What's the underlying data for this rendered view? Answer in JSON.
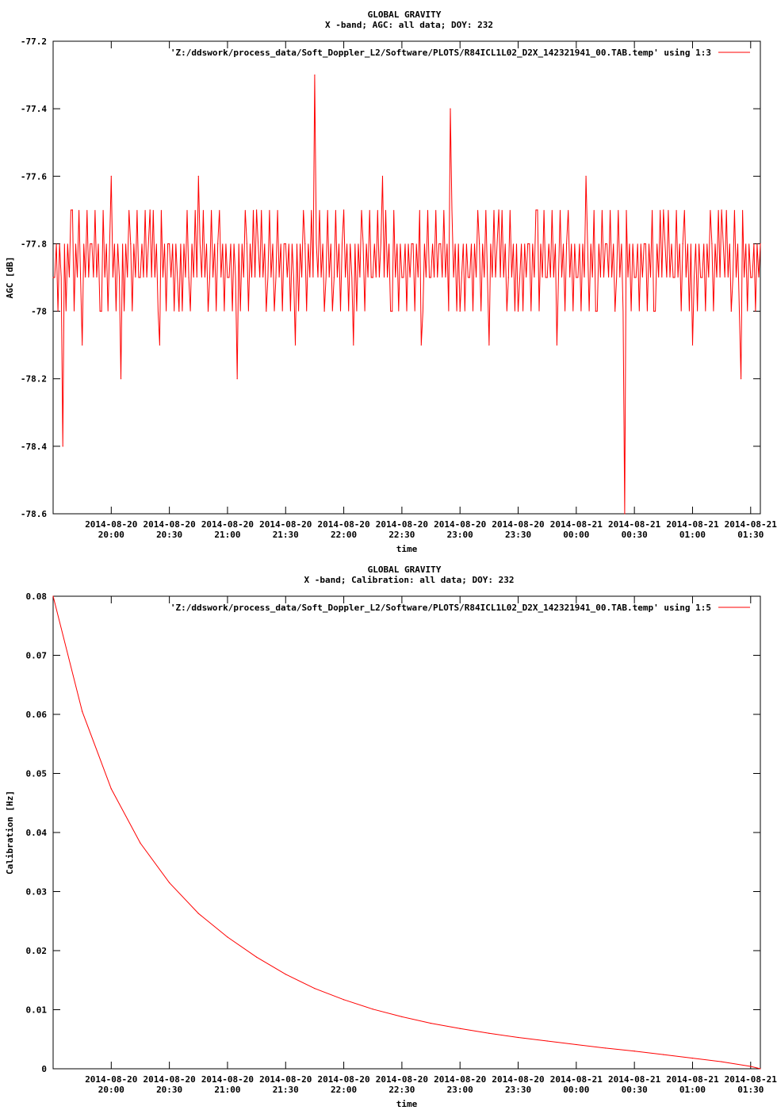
{
  "chart_data": [
    {
      "type": "line",
      "title": "GLOBAL GRAVITY",
      "subtitle": "X -band; AGC: all data; DOY: 232",
      "xlabel": "time",
      "ylabel": "AGC [dB]",
      "ylim": [
        -78.6,
        -77.2
      ],
      "yticks": [
        -77.2,
        -77.4,
        -77.6,
        -77.8,
        -78,
        -78.2,
        -78.4,
        -78.6
      ],
      "ytick_labels": [
        "-77.2",
        "-77.4",
        "-77.6",
        "-77.8",
        "-78",
        "-78.2",
        "-78.4",
        "-78.6"
      ],
      "xlim_min": [
        0,
        365
      ],
      "xticks_min": [
        30,
        60,
        90,
        120,
        150,
        180,
        210,
        240,
        270,
        300,
        330,
        360
      ],
      "xtick_dates": [
        "2014-08-20",
        "2014-08-20",
        "2014-08-20",
        "2014-08-20",
        "2014-08-20",
        "2014-08-20",
        "2014-08-20",
        "2014-08-20",
        "2014-08-21",
        "2014-08-21",
        "2014-08-21",
        "2014-08-21"
      ],
      "xtick_times": [
        "20:00",
        "20:30",
        "21:00",
        "21:30",
        "22:00",
        "22:30",
        "23:00",
        "23:30",
        "00:00",
        "00:30",
        "01:00",
        "01:30"
      ],
      "legend_position": "top-right",
      "color": "#ff0000",
      "series": [
        {
          "name": "'Z:/ddswork/process_data/Soft_Doppler_L2/Software/PLOTS/R84ICL1L02_D2X_142321941_00.TAB.temp' using 1:3",
          "x_min": [
            0,
            5,
            10,
            15,
            20,
            25,
            30,
            35,
            40,
            45,
            50,
            55,
            60,
            65,
            70,
            75,
            80,
            85,
            90,
            95,
            100,
            105,
            110,
            115,
            120,
            125,
            130,
            135,
            140,
            145,
            150,
            155,
            160,
            165,
            170,
            175,
            180,
            185,
            190,
            195,
            200,
            205,
            210,
            215,
            220,
            225,
            230,
            235,
            240,
            245,
            250,
            255,
            260,
            265,
            270,
            275,
            280,
            285,
            290,
            295,
            300,
            305,
            310,
            315,
            320,
            325,
            330,
            335,
            340,
            345,
            350,
            355,
            360,
            365
          ],
          "values": [
            -77.9,
            -78.4,
            -77.7,
            -78.1,
            -77.8,
            -78.0,
            -77.6,
            -78.2,
            -77.8,
            -77.9,
            -77.7,
            -78.1,
            -77.8,
            -78.0,
            -77.9,
            -77.6,
            -78.0,
            -77.8,
            -77.9,
            -78.2,
            -77.8,
            -77.7,
            -78.0,
            -77.9,
            -77.8,
            -78.1,
            -77.8,
            -77.3,
            -78.0,
            -77.9,
            -77.7,
            -78.1,
            -77.8,
            -77.9,
            -77.6,
            -78.0,
            -77.9,
            -77.8,
            -78.1,
            -77.9,
            -77.8,
            -77.4,
            -78.0,
            -77.9,
            -77.8,
            -78.1,
            -77.7,
            -77.9,
            -78.0,
            -77.8,
            -77.7,
            -77.9,
            -78.1,
            -77.8,
            -77.9,
            -77.6,
            -78.0,
            -77.8,
            -78.0,
            -78.6,
            -77.9,
            -77.8,
            -78.0,
            -77.7,
            -77.9,
            -77.8,
            -78.1,
            -77.9,
            -77.8,
            -77.7,
            -78.0,
            -78.2,
            -77.9,
            -77.8
          ]
        }
      ]
    },
    {
      "type": "line",
      "title": "GLOBAL GRAVITY",
      "subtitle": "X -band; Calibration: all data; DOY: 232",
      "xlabel": "time",
      "ylabel": "Calibration [Hz]",
      "ylim": [
        0,
        0.08
      ],
      "yticks": [
        0.08,
        0.07,
        0.06,
        0.05,
        0.04,
        0.03,
        0.02,
        0.01,
        0
      ],
      "ytick_labels": [
        "0.08",
        "0.07",
        "0.06",
        "0.05",
        "0.04",
        "0.03",
        "0.02",
        "0.01",
        "0"
      ],
      "xlim_min": [
        0,
        365
      ],
      "xticks_min": [
        30,
        60,
        90,
        120,
        150,
        180,
        210,
        240,
        270,
        300,
        330,
        360
      ],
      "xtick_dates": [
        "2014-08-20",
        "2014-08-20",
        "2014-08-20",
        "2014-08-20",
        "2014-08-20",
        "2014-08-20",
        "2014-08-20",
        "2014-08-20",
        "2014-08-21",
        "2014-08-21",
        "2014-08-21",
        "2014-08-21"
      ],
      "xtick_times": [
        "20:00",
        "20:30",
        "21:00",
        "21:30",
        "22:00",
        "22:30",
        "23:00",
        "23:30",
        "00:00",
        "00:30",
        "01:00",
        "01:30"
      ],
      "legend_position": "top-right",
      "color": "#ff0000",
      "series": [
        {
          "name": "'Z:/ddswork/process_data/Soft_Doppler_L2/Software/PLOTS/R84ICL1L02_D2X_142321941_00.TAB.temp' using 1:5",
          "x_min": [
            0,
            15,
            30,
            45,
            60,
            75,
            90,
            105,
            120,
            135,
            150,
            165,
            180,
            195,
            210,
            225,
            240,
            255,
            270,
            285,
            300,
            315,
            330,
            345,
            360,
            365
          ],
          "values": [
            0.08,
            0.0605,
            0.0474,
            0.0382,
            0.0315,
            0.0263,
            0.0223,
            0.0189,
            0.016,
            0.0136,
            0.0117,
            0.0101,
            0.0088,
            0.0077,
            0.0068,
            0.006,
            0.0053,
            0.0047,
            0.0041,
            0.0035,
            0.003,
            0.0024,
            0.0018,
            0.0012,
            0.0004,
            0.0
          ]
        }
      ]
    }
  ]
}
